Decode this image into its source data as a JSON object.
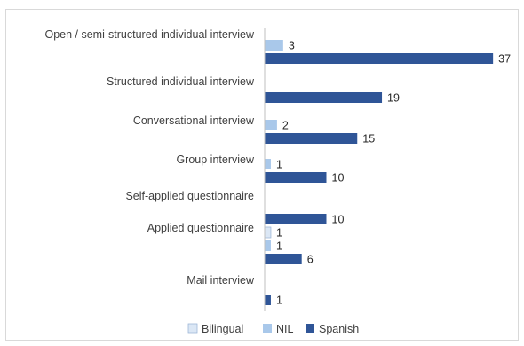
{
  "chart_data": {
    "type": "bar",
    "orientation": "horizontal",
    "categories": [
      "Open / semi-structured individual interview",
      "Structured individual interview",
      "Conversational interview",
      "Group interview",
      "Self-applied questionnaire",
      "Applied questionnaire",
      "Mail interview"
    ],
    "series": [
      {
        "name": "Bilingual",
        "color": "#dbe7f5",
        "values": [
          null,
          null,
          null,
          null,
          null,
          1,
          null
        ]
      },
      {
        "name": "NIL",
        "color": "#a9c8ea",
        "values": [
          3,
          null,
          2,
          1,
          null,
          1,
          null
        ]
      },
      {
        "name": "Spanish",
        "color": "#2f5597",
        "values": [
          37,
          19,
          15,
          10,
          10,
          6,
          1
        ]
      }
    ],
    "title": "",
    "xlabel": "",
    "ylabel": "",
    "legend_position": "bottom",
    "grid": false,
    "data_labels": true
  }
}
